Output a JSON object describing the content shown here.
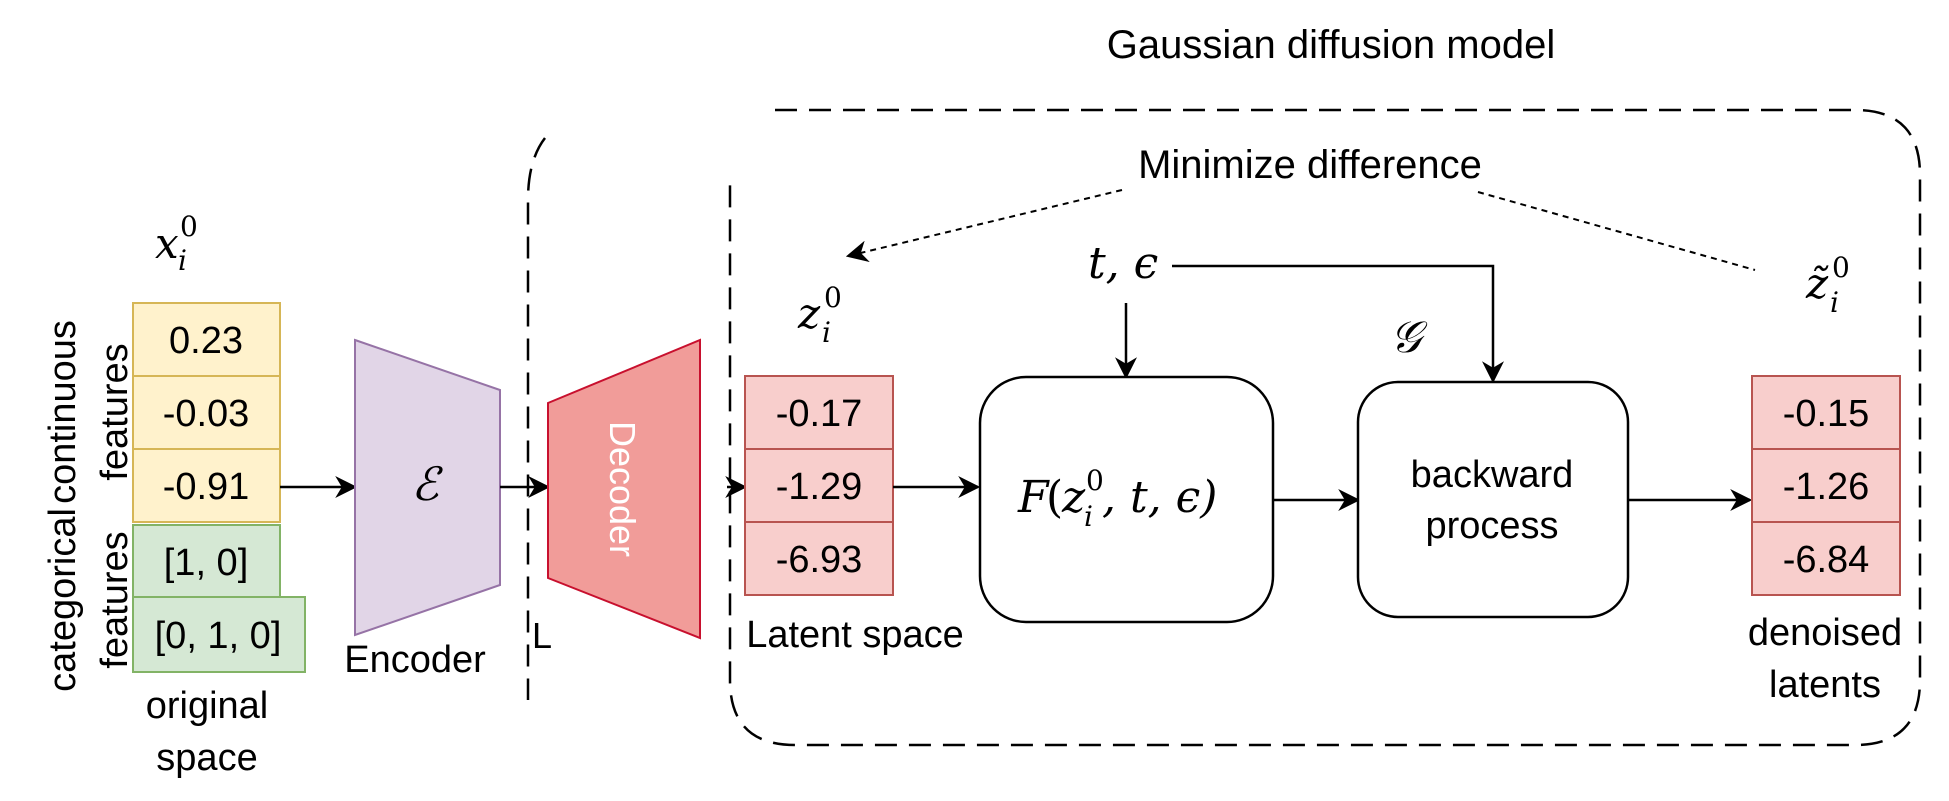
{
  "title": "Gaussian diffusion model",
  "minimize_label": "Minimize difference",
  "original": {
    "symbol_base": "x",
    "symbol_sub": "i",
    "symbol_sup": "0",
    "continuous_label_1": "continuous",
    "continuous_label_2": "features",
    "categorical_label_1": "categorical",
    "categorical_label_2": "features",
    "space_label_1": "original",
    "space_label_2": "space",
    "continuous_values": [
      "0.23",
      "-0.03",
      "-0.91"
    ],
    "categorical_values": [
      "[1, 0]",
      "[0, 1, 0]"
    ]
  },
  "encoder": {
    "symbol": "ℰ",
    "label": "Encoder"
  },
  "decoder": {
    "label": "Decoder",
    "clipped_label": "L"
  },
  "latent": {
    "symbol_base": "z",
    "symbol_sub": "i",
    "symbol_sup": "0",
    "values": [
      "-0.17",
      "-1.29",
      "-6.93"
    ],
    "label": "Latent space"
  },
  "noise": {
    "symbol": "t, ϵ"
  },
  "forward_box": {
    "func": "F",
    "arg_base": "z",
    "arg_sub": "i",
    "arg_sup": "0",
    "rest": ", t, ϵ)"
  },
  "backward_box": {
    "symbol": "𝒢",
    "line1": "backward",
    "line2": "process"
  },
  "denoised": {
    "symbol_base": "z̃",
    "symbol_sub": "i",
    "symbol_sup": "0",
    "values": [
      "-0.15",
      "-1.26",
      "-6.84"
    ],
    "label_1": "denoised",
    "label_2": "latents"
  },
  "colors": {
    "yellow_fill": "#fff2cc",
    "yellow_stroke": "#d6b656",
    "green_fill": "#d5e8d4",
    "green_stroke": "#82b366",
    "purple_fill": "#e1d5e7",
    "purple_stroke": "#9673a6",
    "decoder_fill": "#f19c99",
    "decoder_stroke": "#c8102e",
    "red_fill": "#f8cecc",
    "red_stroke": "#b85450"
  }
}
